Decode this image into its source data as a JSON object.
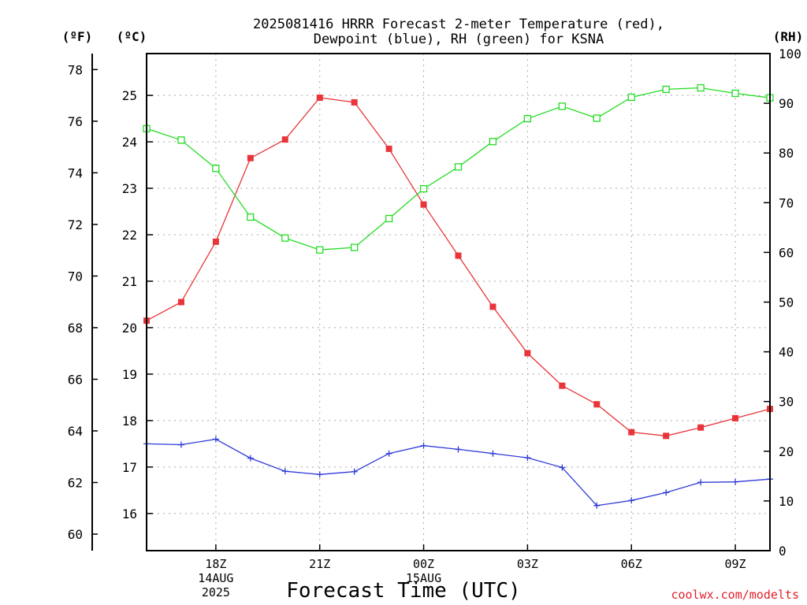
{
  "chart_data": {
    "type": "line",
    "title": [
      "2025081416 HRRR Forecast 2-meter Temperature (red),",
      "Dewpoint (blue), RH (green) for KSNA"
    ],
    "xlabel": "Forecast Time (UTC)",
    "watermark": "coolwx.com/modelts",
    "units": {
      "fahrenheit": "(ºF)",
      "celsius": "(ºC)",
      "rh": "(RH)"
    },
    "x_hours": [
      16,
      17,
      18,
      19,
      20,
      21,
      22,
      23,
      24,
      25,
      26,
      27,
      28,
      29,
      30,
      31,
      32,
      33,
      34
    ],
    "x_range": [
      16,
      34
    ],
    "x_ticks": [
      {
        "hour": 18,
        "lines": [
          "18Z",
          "14AUG",
          "2025"
        ]
      },
      {
        "hour": 21,
        "lines": [
          "21Z"
        ]
      },
      {
        "hour": 24,
        "lines": [
          "00Z",
          "15AUG"
        ]
      },
      {
        "hour": 27,
        "lines": [
          "03Z"
        ]
      },
      {
        "hour": 30,
        "lines": [
          "06Z"
        ]
      },
      {
        "hour": 33,
        "lines": [
          "09Z"
        ]
      }
    ],
    "axes": {
      "celsius": {
        "range": [
          15.2,
          25.9
        ],
        "ticks": [
          16,
          17,
          18,
          19,
          20,
          21,
          22,
          23,
          24,
          25
        ]
      },
      "fahrenheit": {
        "range": [
          59.36,
          78.62
        ],
        "ticks": [
          60,
          62,
          64,
          66,
          68,
          70,
          72,
          74,
          76,
          78
        ]
      },
      "rh": {
        "range": [
          0,
          100
        ],
        "ticks": [
          0,
          10,
          20,
          30,
          40,
          50,
          60,
          70,
          80,
          90,
          100
        ]
      }
    },
    "grid": true,
    "colors": {
      "temperature": "#e8353a",
      "dewpoint": "#2f3bd8",
      "rh": "#22dd22"
    },
    "series": [
      {
        "key": "temperature",
        "axis": "celsius",
        "marker": "filled-square",
        "values": [
          20.15,
          20.55,
          21.85,
          23.65,
          24.05,
          24.95,
          24.85,
          23.85,
          22.65,
          21.55,
          20.45,
          19.45,
          18.75,
          18.35,
          17.75,
          17.67,
          17.85,
          18.05,
          18.25
        ]
      },
      {
        "key": "dewpoint",
        "axis": "celsius",
        "marker": "plus",
        "values": [
          17.5,
          17.48,
          17.6,
          17.19,
          16.91,
          16.84,
          16.9,
          17.29,
          17.46,
          17.38,
          17.29,
          17.2,
          16.99,
          16.17,
          16.28,
          16.45,
          16.67,
          16.68,
          16.74
        ]
      },
      {
        "key": "rh",
        "axis": "rh",
        "marker": "open-square",
        "values": [
          84.9,
          82.6,
          76.9,
          67.1,
          62.9,
          60.5,
          61.0,
          66.8,
          72.8,
          77.2,
          82.3,
          86.9,
          89.4,
          87.0,
          91.2,
          92.8,
          93.1,
          92.0,
          91.1
        ]
      }
    ]
  }
}
